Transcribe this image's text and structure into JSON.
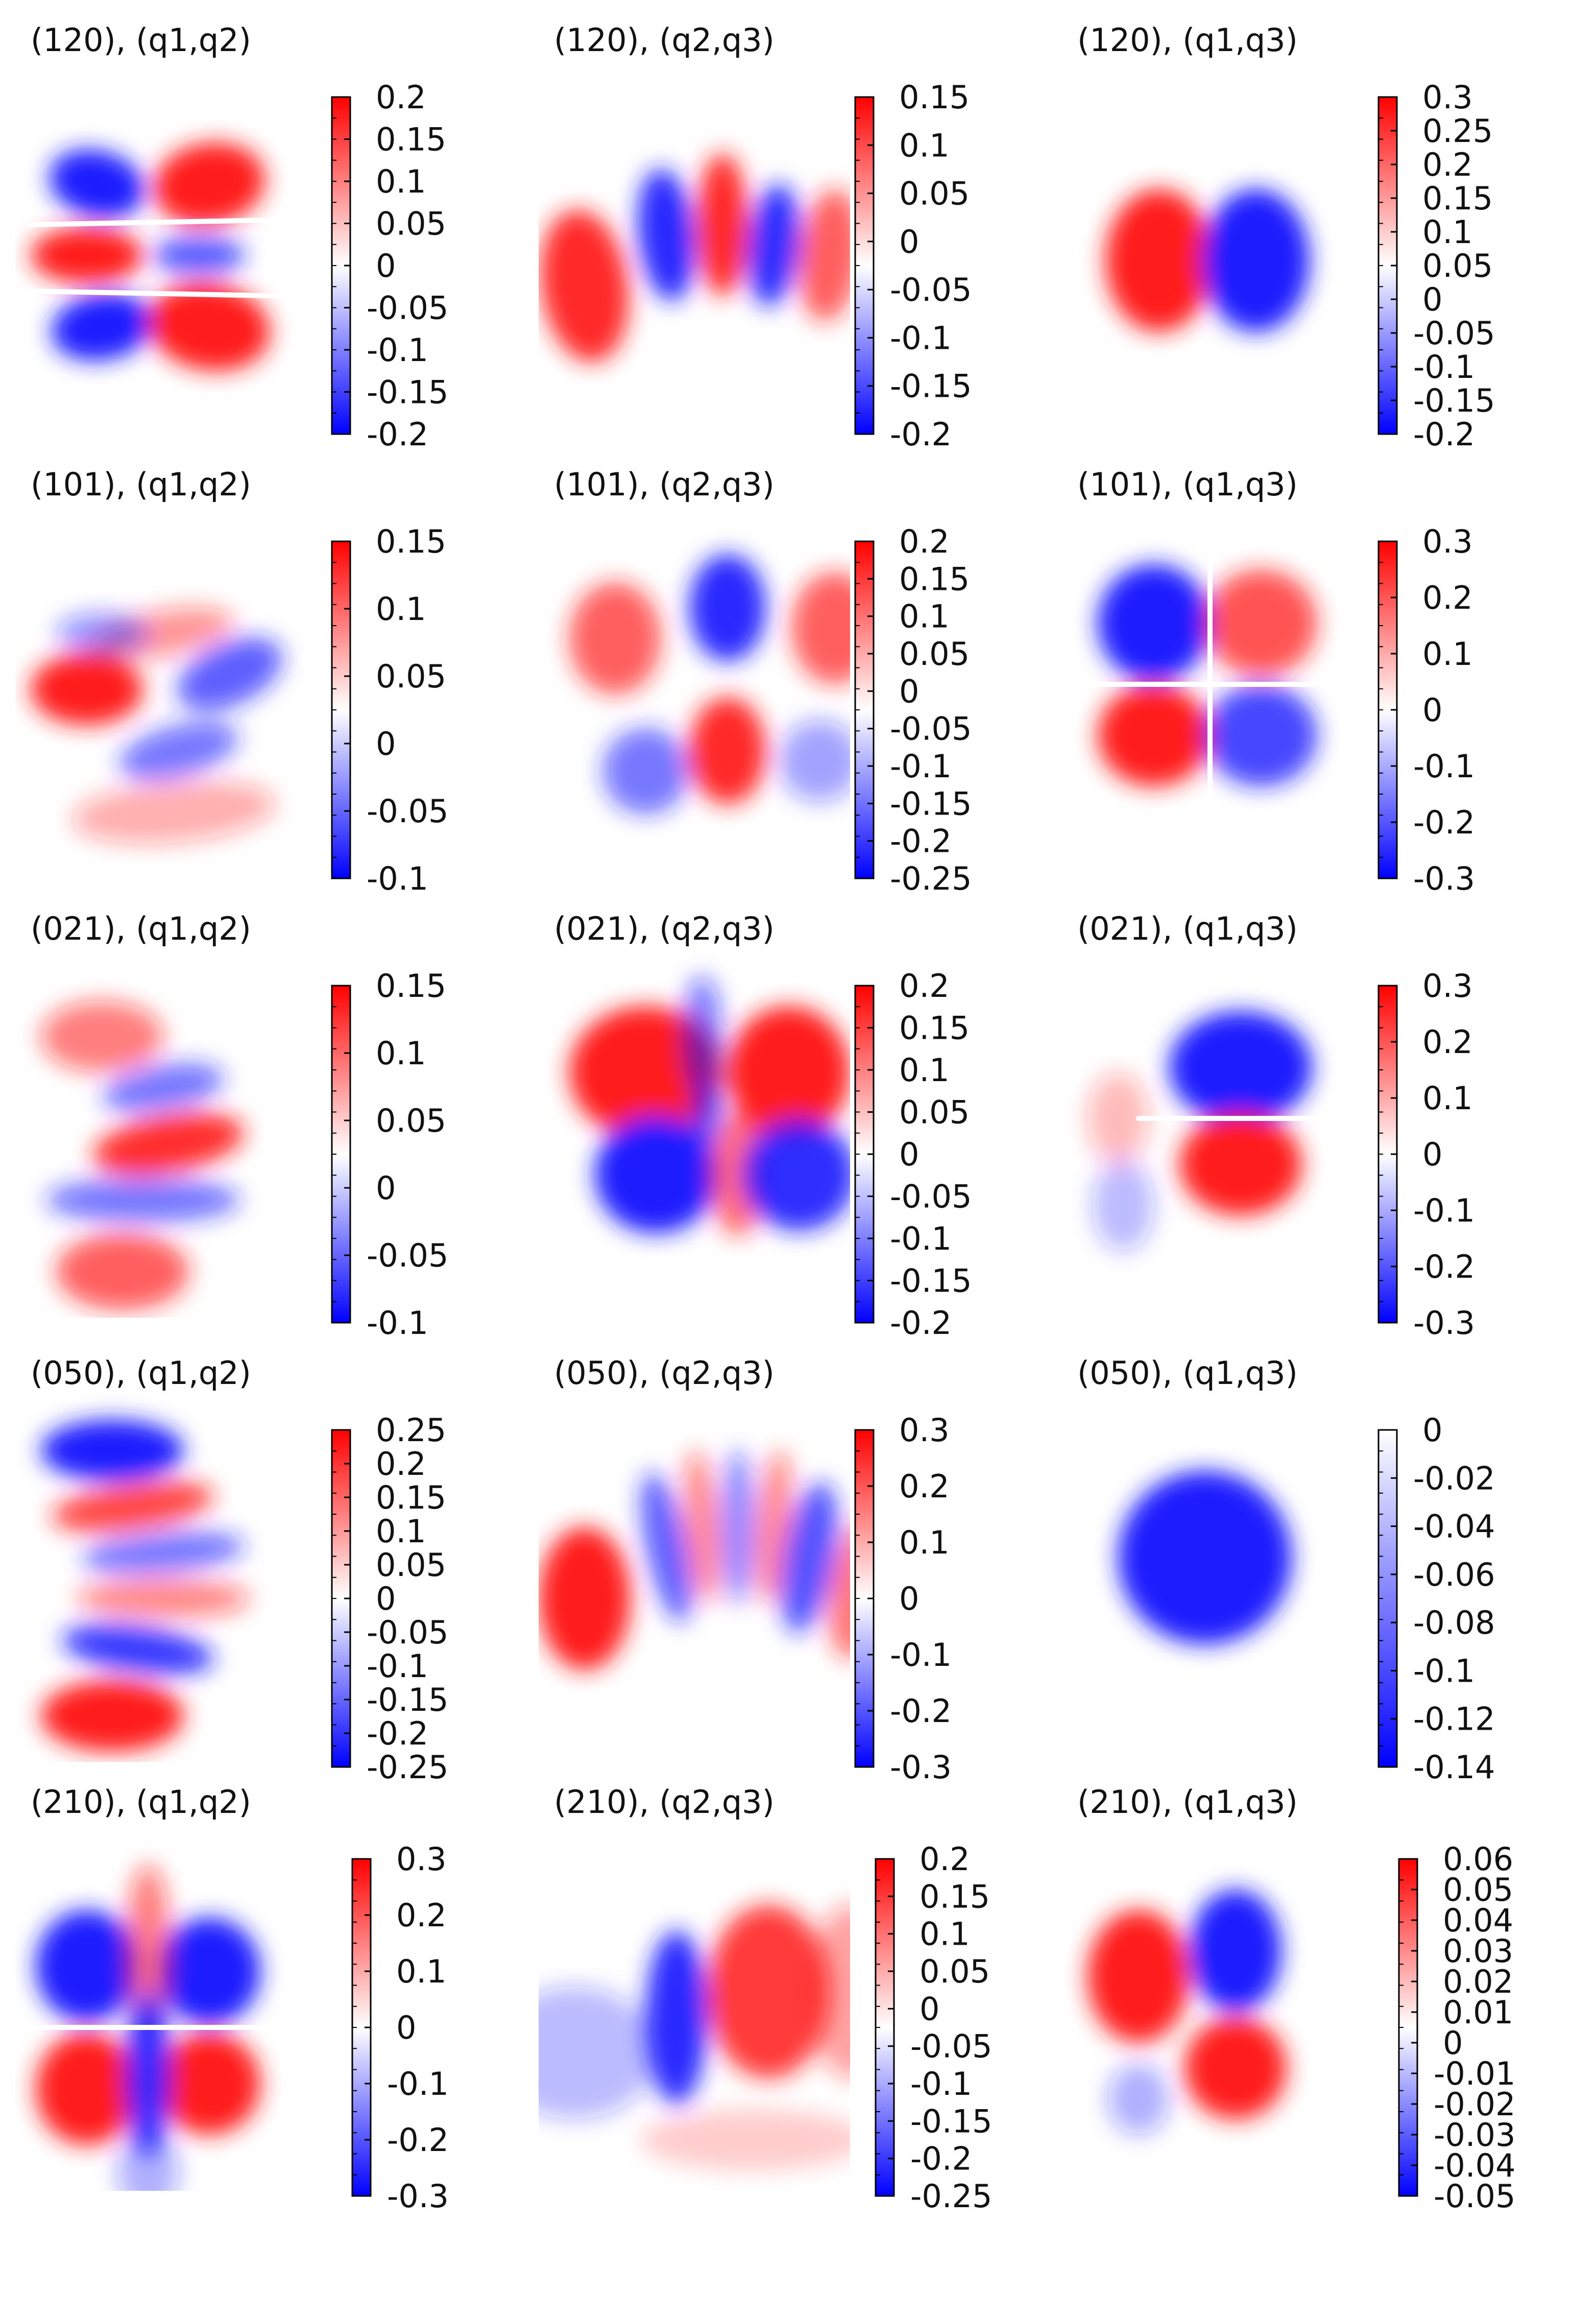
{
  "figure": {
    "type": "heatmap",
    "colormap": {
      "negative": "#0000ff",
      "zero": "#ffffff",
      "positive": "#ff0000"
    }
  },
  "chart_data": [
    {
      "type": "heatmap",
      "title": "(120), (q1,q2)",
      "pattern": "p120_12",
      "clim": [
        -0.2,
        0.2
      ],
      "colorbar_ticks": [
        "0.2",
        "0.15",
        "0.1",
        "0.05",
        "0",
        "-0.05",
        "-0.1",
        "-0.15",
        "-0.2"
      ]
    },
    {
      "type": "heatmap",
      "title": "(120), (q2,q3)",
      "pattern": "p120_23",
      "clim": [
        -0.2,
        0.15
      ],
      "colorbar_ticks": [
        "0.15",
        "0.1",
        "0.05",
        "0",
        "-0.05",
        "-0.1",
        "-0.15",
        "-0.2"
      ]
    },
    {
      "type": "heatmap",
      "title": "(120), (q1,q3)",
      "pattern": "p120_13",
      "clim": [
        -0.2,
        0.3
      ],
      "colorbar_ticks": [
        "0.3",
        "0.25",
        "0.2",
        "0.15",
        "0.1",
        "0.05",
        "0",
        "-0.05",
        "-0.1",
        "-0.15",
        "-0.2"
      ]
    },
    {
      "type": "heatmap",
      "title": "(101), (q1,q2)",
      "pattern": "p101_12",
      "clim": [
        -0.1,
        0.15
      ],
      "colorbar_ticks": [
        "0.15",
        "0.1",
        "0.05",
        "0",
        "-0.05",
        "-0.1"
      ]
    },
    {
      "type": "heatmap",
      "title": "(101), (q2,q3)",
      "pattern": "p101_23",
      "clim": [
        -0.25,
        0.2
      ],
      "colorbar_ticks": [
        "0.2",
        "0.15",
        "0.1",
        "0.05",
        "0",
        "-0.05",
        "-0.1",
        "-0.15",
        "-0.2",
        "-0.25"
      ]
    },
    {
      "type": "heatmap",
      "title": "(101), (q1,q3)",
      "pattern": "p101_13",
      "clim": [
        -0.3,
        0.3
      ],
      "colorbar_ticks": [
        "0.3",
        "0.2",
        "0.1",
        "0",
        "-0.1",
        "-0.2",
        "-0.3"
      ]
    },
    {
      "type": "heatmap",
      "title": "(021), (q1,q2)",
      "pattern": "p021_12",
      "clim": [
        -0.1,
        0.15
      ],
      "colorbar_ticks": [
        "0.15",
        "0.1",
        "0.05",
        "0",
        "-0.05",
        "-0.1"
      ]
    },
    {
      "type": "heatmap",
      "title": "(021), (q2,q3)",
      "pattern": "p021_23",
      "clim": [
        -0.2,
        0.2
      ],
      "colorbar_ticks": [
        "0.2",
        "0.15",
        "0.1",
        "0.05",
        "0",
        "-0.05",
        "-0.1",
        "-0.15",
        "-0.2"
      ]
    },
    {
      "type": "heatmap",
      "title": "(021), (q1,q3)",
      "pattern": "p021_13",
      "clim": [
        -0.3,
        0.3
      ],
      "colorbar_ticks": [
        "0.3",
        "0.2",
        "0.1",
        "0",
        "-0.1",
        "-0.2",
        "-0.3"
      ]
    },
    {
      "type": "heatmap",
      "title": "(050), (q1,q2)",
      "pattern": "p050_12",
      "clim": [
        -0.25,
        0.25
      ],
      "colorbar_ticks": [
        "0.25",
        "0.2",
        "0.15",
        "0.1",
        "0.05",
        "0",
        "-0.05",
        "-0.1",
        "-0.15",
        "-0.2",
        "-0.25"
      ]
    },
    {
      "type": "heatmap",
      "title": "(050), (q2,q3)",
      "pattern": "p050_23",
      "clim": [
        -0.3,
        0.3
      ],
      "colorbar_ticks": [
        "0.3",
        "0.2",
        "0.1",
        "0",
        "-0.1",
        "-0.2",
        "-0.3"
      ]
    },
    {
      "type": "heatmap",
      "title": "(050), (q1,q3)",
      "pattern": "p050_13",
      "clim": [
        -0.14,
        0
      ],
      "colorbar_ticks": [
        "0",
        "-0.02",
        "-0.04",
        "-0.06",
        "-0.08",
        "-0.1",
        "-0.12",
        "-0.14"
      ]
    },
    {
      "type": "heatmap",
      "title": "(210), (q1,q2)",
      "pattern": "p210_12",
      "clim": [
        -0.3,
        0.3
      ],
      "colorbar_ticks": [
        "0.3",
        "0.2",
        "0.1",
        "0",
        "-0.1",
        "-0.2",
        "-0.3"
      ]
    },
    {
      "type": "heatmap",
      "title": "(210), (q2,q3)",
      "pattern": "p210_23",
      "clim": [
        -0.25,
        0.2
      ],
      "colorbar_ticks": [
        "0.2",
        "0.15",
        "0.1",
        "0.05",
        "0",
        "-0.05",
        "-0.1",
        "-0.15",
        "-0.2",
        "-0.25"
      ]
    },
    {
      "type": "heatmap",
      "title": "(210), (q1,q3)",
      "pattern": "p210_13",
      "clim": [
        -0.05,
        0.06
      ],
      "colorbar_ticks": [
        "0.06",
        "0.05",
        "0.04",
        "0.03",
        "0.02",
        "0.01",
        "0",
        "-0.01",
        "-0.02",
        "-0.03",
        "-0.04",
        "-0.05"
      ]
    }
  ]
}
